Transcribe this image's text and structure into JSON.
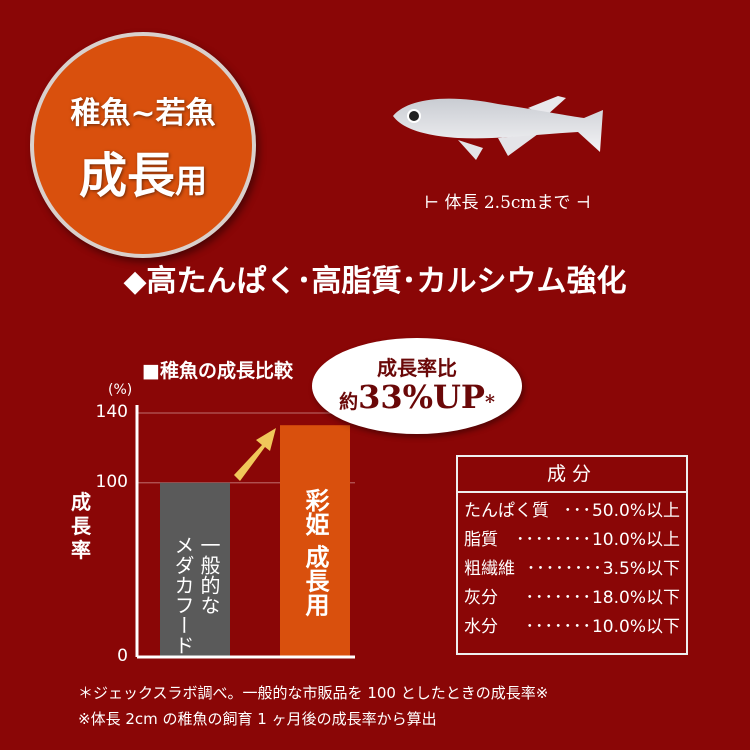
{
  "badge": {
    "line1": "稚魚~若魚",
    "line2_main": "成長",
    "line2_small": "用"
  },
  "fish": {
    "size_text": "⊢ 体長 2.5cmまで ⊣"
  },
  "headline": "◆高たんぱく･高脂質･カルシウム強化",
  "chart_data": {
    "type": "bar",
    "title": "■稚魚の成長比較",
    "unit": "(%)",
    "ylabel": "成長率",
    "ylim": [
      0,
      140
    ],
    "yticks": [
      0,
      100,
      140
    ],
    "categories": [
      "一般的なメダカフード",
      "彩姫 成長用"
    ],
    "values": [
      100,
      133
    ],
    "colors": [
      "#5a5a5a",
      "#d9500d"
    ],
    "annotation": {
      "line1": "成長率比",
      "line2_prefix": "約",
      "line2_main": "33%UP",
      "line2_suffix": "*"
    }
  },
  "bar_labels": [
    "一般的な\nメダカフード",
    "彩姫 成長用"
  ],
  "ingredients": {
    "title": "成分",
    "rows": [
      {
        "name": "たんぱく質",
        "dots": "･･･",
        "value": "50.0%以上"
      },
      {
        "name": "脂質",
        "dots": "････････",
        "value": "10.0%以上"
      },
      {
        "name": "粗繊維",
        "dots": "････････",
        "value": "3.5%以下"
      },
      {
        "name": "灰分",
        "dots": "･･･････",
        "value": "18.0%以下"
      },
      {
        "name": "水分",
        "dots": "･･･････",
        "value": "10.0%以下"
      }
    ]
  },
  "notes": [
    "＊ジェックスラボ調べ。一般的な市販品を 100 としたときの成長率※",
    "※体長 2cm の稚魚の飼育 1 ヶ月後の成長率から算出"
  ]
}
